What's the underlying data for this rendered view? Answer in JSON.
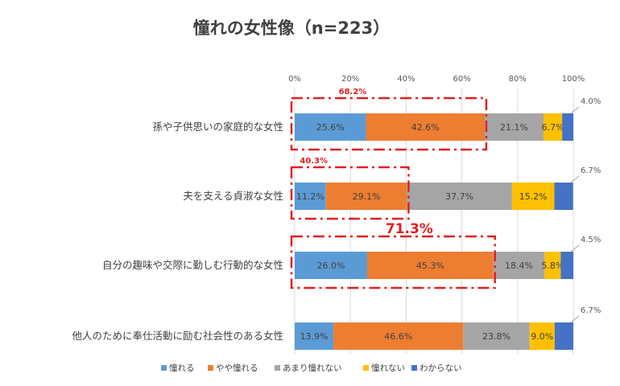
{
  "chart_data": {
    "type": "bar",
    "orientation": "horizontal",
    "stacked": true,
    "percent_stacked": true,
    "title": "憧れの女性像（n=223）",
    "xlim": [
      0,
      100
    ],
    "x_ticks": [
      "0%",
      "20%",
      "40%",
      "60%",
      "80%",
      "100%"
    ],
    "grid": true,
    "legend_position": "bottom",
    "categories": [
      "孫や子供思いの家庭的な女性",
      "夫を支える貞淑な女性",
      "自分の趣味や交際に勤しむ行動的な女性",
      "他人のために奉仕活動に励む社会性のある女性"
    ],
    "series": [
      {
        "name": "憧れる",
        "color": "#5b9bd5",
        "values": [
          25.6,
          11.2,
          26.0,
          13.9
        ],
        "labels": [
          "25.6%",
          "11.2%",
          "26.0%",
          "13.9%"
        ]
      },
      {
        "name": "やや憧れる",
        "color": "#ed7d31",
        "values": [
          42.6,
          29.1,
          45.3,
          46.6
        ],
        "labels": [
          "42.6%",
          "29.1%",
          "45.3%",
          "46.6%"
        ]
      },
      {
        "name": "あまり憧れない",
        "color": "#a5a5a5",
        "values": [
          21.1,
          37.7,
          18.4,
          23.8
        ],
        "labels": [
          "21.1%",
          "37.7%",
          "18.4%",
          "23.8%"
        ]
      },
      {
        "name": "憧れない",
        "color": "#ffc000",
        "values": [
          6.7,
          15.2,
          5.8,
          9.0
        ],
        "labels": [
          "6.7%",
          "15.2%",
          "5.8%",
          "9.0%"
        ]
      },
      {
        "name": "わからない",
        "color": "#4472c4",
        "values": [
          4.0,
          6.7,
          4.5,
          6.7
        ],
        "labels": [
          "4.0%",
          "6.7%",
          "4.5%",
          "6.7%"
        ]
      }
    ],
    "callouts": [
      {
        "category_index": 0,
        "text": "68.2%",
        "style": "small"
      },
      {
        "category_index": 1,
        "text": "40.3%",
        "style": "small"
      },
      {
        "category_index": 2,
        "text": "71.3%",
        "style": "big"
      }
    ]
  }
}
